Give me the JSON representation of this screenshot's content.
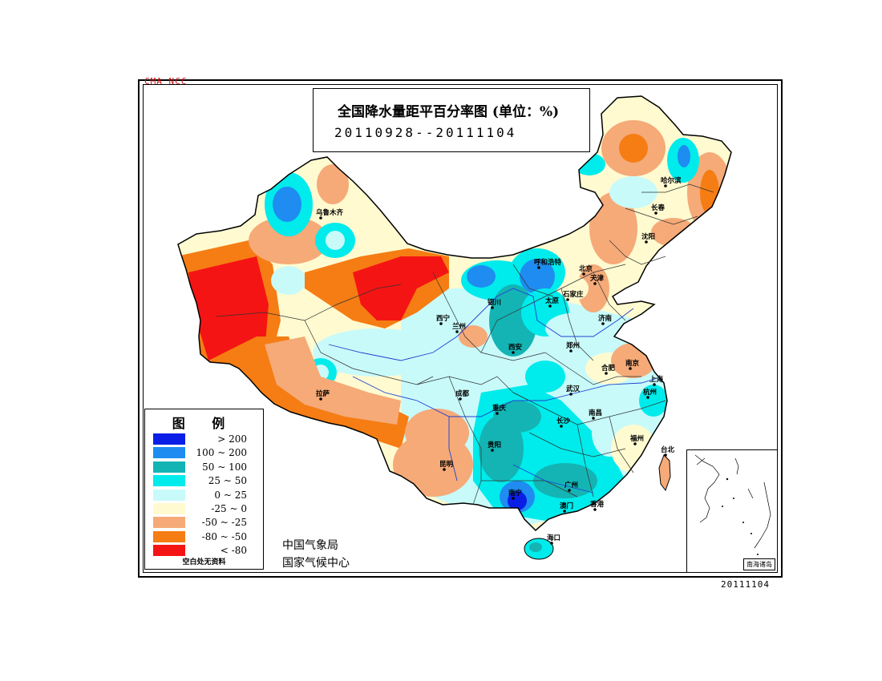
{
  "header": {
    "agency_mark": "CMA NCC",
    "title": "全国降水量距平百分率图 (单位：%)",
    "date_range": "20110928--20111104"
  },
  "legend": {
    "title": "图 例",
    "items": [
      {
        "label": "> 200",
        "color": "#0a1ee6"
      },
      {
        "label": "100 ~ 200",
        "color": "#1e8cf0"
      },
      {
        "label": "50 ~ 100",
        "color": "#14b4b4"
      },
      {
        "label": "25 ~ 50",
        "color": "#00ebeb"
      },
      {
        "label": "0 ~ 25",
        "color": "#c8fafa"
      },
      {
        "label": "-25 ~ 0",
        "color": "#fffad0"
      },
      {
        "label": "-50 ~ -25",
        "color": "#f5aa78"
      },
      {
        "label": "-80 ~ -50",
        "color": "#f57d14"
      },
      {
        "label": "< -80",
        "color": "#f51414"
      }
    ],
    "note": "空白处无资料"
  },
  "agency": {
    "line1": "中国气象局",
    "line2": "国家气候中心"
  },
  "inset": {
    "label": "南海诸岛"
  },
  "issue_date": "20111104",
  "cities": [
    {
      "name": "乌鲁木齐"
    },
    {
      "name": "哈尔滨"
    },
    {
      "name": "长春"
    },
    {
      "name": "沈阳"
    },
    {
      "name": "呼和浩特"
    },
    {
      "name": "北京"
    },
    {
      "name": "天津"
    },
    {
      "name": "太原"
    },
    {
      "name": "石家庄"
    },
    {
      "name": "银川"
    },
    {
      "name": "兰州"
    },
    {
      "name": "西宁"
    },
    {
      "name": "西安"
    },
    {
      "name": "郑州"
    },
    {
      "name": "济南"
    },
    {
      "name": "合肥"
    },
    {
      "name": "南京"
    },
    {
      "name": "上海"
    },
    {
      "name": "杭州"
    },
    {
      "name": "武汉"
    },
    {
      "name": "拉萨"
    },
    {
      "name": "成都"
    },
    {
      "name": "重庆"
    },
    {
      "name": "贵阳"
    },
    {
      "name": "昆明"
    },
    {
      "name": "长沙"
    },
    {
      "name": "南昌"
    },
    {
      "name": "福州"
    },
    {
      "name": "台北"
    },
    {
      "name": "南宁"
    },
    {
      "name": "广州"
    },
    {
      "name": "香港"
    },
    {
      "name": "澳门"
    },
    {
      "name": "海口"
    }
  ]
}
